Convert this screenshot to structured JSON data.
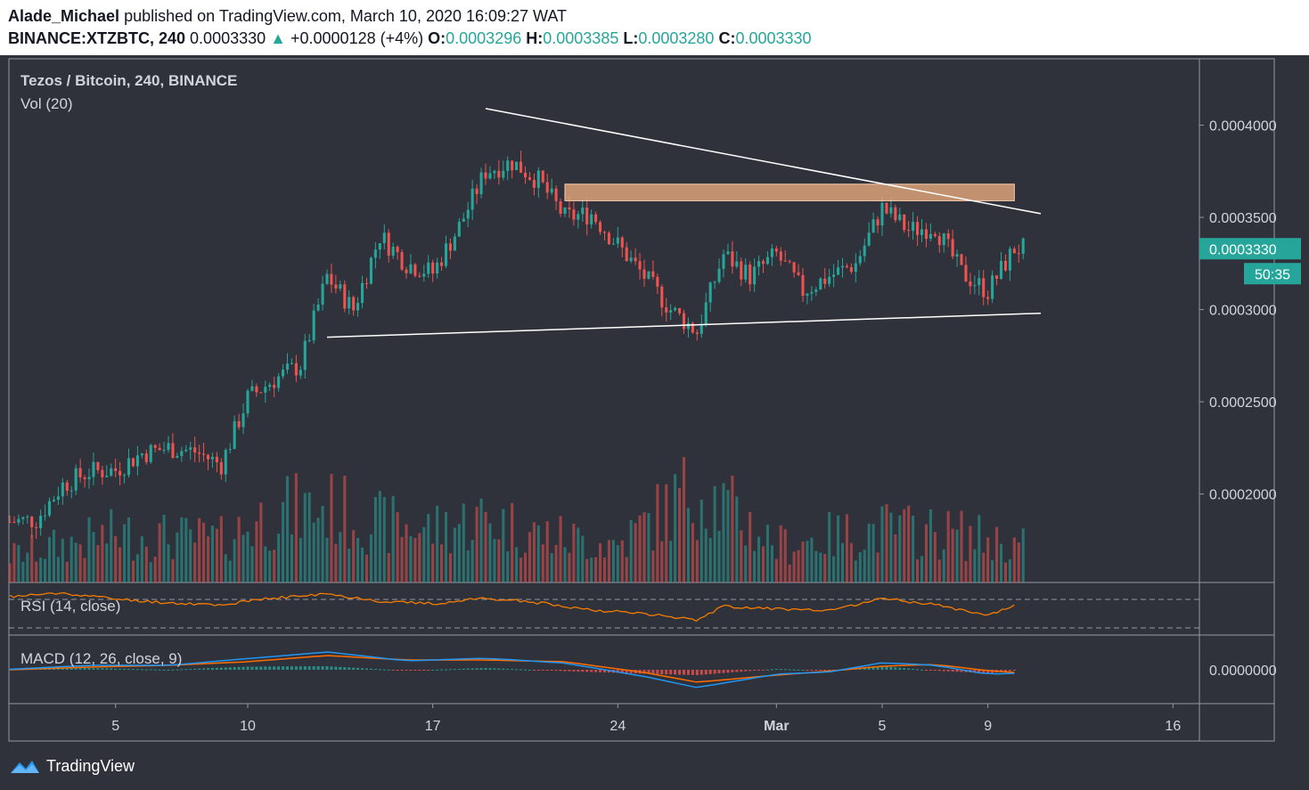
{
  "header": {
    "author": "Alade_Michael",
    "published_text": "published on TradingView.com, March 10, 2020 16:09:27 WAT",
    "symbol": "BINANCE:XTZBTC, 240",
    "last": "0.0003330",
    "change_arrow": "▲",
    "change": "+0.0000128 (+4%)",
    "open_label": "O:",
    "open": "0.0003296",
    "high_label": "H:",
    "high": "0.0003385",
    "low_label": "L:",
    "low": "0.0003280",
    "close_label": "C:",
    "close": "0.0003330"
  },
  "legend": {
    "title": "Tezos / Bitcoin, 240, BINANCE",
    "vol": "Vol (20)",
    "rsi": "RSI (14, close)",
    "macd": "MACD (12, 26, close, 9)"
  },
  "footer": {
    "brand": "TradingView"
  },
  "colors": {
    "bg": "#2f323b",
    "up": "#26a69a",
    "down": "#ef5350",
    "macd": "#2196f3",
    "signal": "#ff6d00",
    "rsi": "#f57c00",
    "zone": "#f4b183",
    "grid": "#9598a1"
  },
  "chart_data": [
    {
      "type": "candlestick",
      "title": "Tezos / Bitcoin, 240, BINANCE",
      "y_ticks": [
        "0.0004000",
        "0.0003500",
        "0.0003000",
        "0.0002500",
        "0.0002000"
      ],
      "y_tick_values": [
        0.0004,
        0.00035,
        0.0003,
        0.00025,
        0.0002
      ],
      "ylim": [
        0.000152,
        0.000436
      ],
      "x_ticks": [
        "5",
        "10",
        "17",
        "24",
        "Mar",
        "5",
        "9",
        "16"
      ],
      "x_tick_dates": [
        "2020-02-05",
        "2020-02-10",
        "2020-02-17",
        "2020-02-24",
        "2020-03-01",
        "2020-03-05",
        "2020-03-09",
        "2020-03-16"
      ],
      "xlim": [
        "2020-02-01",
        "2020-03-17"
      ],
      "last_price_label": "0.0003330",
      "countdown_label": "50:35",
      "close_path": [
        [
          "2020-02-01",
          0.000185
        ],
        [
          "2020-02-02",
          0.000186
        ],
        [
          "2020-02-03",
          0.000205
        ],
        [
          "2020-02-04",
          0.000212
        ],
        [
          "2020-02-05",
          0.000213
        ],
        [
          "2020-02-06",
          0.000222
        ],
        [
          "2020-02-07",
          0.000225
        ],
        [
          "2020-02-08",
          0.000223
        ],
        [
          "2020-02-09",
          0.000216
        ],
        [
          "2020-02-10",
          0.000252
        ],
        [
          "2020-02-11",
          0.000262
        ],
        [
          "2020-02-12",
          0.00027
        ],
        [
          "2020-02-13",
          0.000318
        ],
        [
          "2020-02-14",
          0.0003
        ],
        [
          "2020-02-15",
          0.00034
        ],
        [
          "2020-02-16",
          0.000325
        ],
        [
          "2020-02-17",
          0.00032
        ],
        [
          "2020-02-18",
          0.000345
        ],
        [
          "2020-02-19",
          0.000375
        ],
        [
          "2020-02-20",
          0.00038
        ],
        [
          "2020-02-21",
          0.00037
        ],
        [
          "2020-02-22",
          0.00035
        ],
        [
          "2020-02-23",
          0.000352
        ],
        [
          "2020-02-24",
          0.000335
        ],
        [
          "2020-02-25",
          0.000318
        ],
        [
          "2020-02-26",
          0.0003
        ],
        [
          "2020-02-27",
          0.000288
        ],
        [
          "2020-02-28",
          0.00033
        ],
        [
          "2020-02-29",
          0.000318
        ],
        [
          "2020-03-01",
          0.00033
        ],
        [
          "2020-03-02",
          0.00031
        ],
        [
          "2020-03-03",
          0.000318
        ],
        [
          "2020-03-04",
          0.000325
        ],
        [
          "2020-03-05",
          0.000355
        ],
        [
          "2020-03-06",
          0.000343
        ],
        [
          "2020-03-07",
          0.000345
        ],
        [
          "2020-03-08",
          0.00032
        ],
        [
          "2020-03-09",
          0.00031
        ],
        [
          "2020-03-10",
          0.000333
        ]
      ],
      "zone": {
        "from": "2020-02-22",
        "to": "2020-03-10",
        "low": 0.000359,
        "high": 0.000368
      },
      "trendlines": [
        {
          "name": "descending resistance",
          "points": [
            [
              "2020-02-19",
              0.000409
            ],
            [
              "2020-03-11",
              0.000352
            ]
          ]
        },
        {
          "name": "ascending support",
          "points": [
            [
              "2020-02-13",
              0.000285
            ],
            [
              "2020-03-11",
              0.000298
            ]
          ]
        }
      ]
    },
    {
      "type": "bar",
      "title": "Vol (20)",
      "relative_level_path": [
        [
          "2020-02-01",
          0.25
        ],
        [
          "2020-02-05",
          0.45
        ],
        [
          "2020-02-09",
          0.4
        ],
        [
          "2020-02-11",
          0.65
        ],
        [
          "2020-02-13",
          0.7
        ],
        [
          "2020-02-15",
          0.55
        ],
        [
          "2020-02-17",
          0.5
        ],
        [
          "2020-02-19",
          0.6
        ],
        [
          "2020-02-21",
          0.45
        ],
        [
          "2020-02-24",
          0.35
        ],
        [
          "2020-02-27",
          0.9
        ],
        [
          "2020-03-01",
          0.35
        ],
        [
          "2020-03-05",
          0.5
        ],
        [
          "2020-03-08",
          0.45
        ],
        [
          "2020-03-10",
          0.35
        ]
      ]
    },
    {
      "type": "line",
      "title": "RSI (14, close)",
      "path": [
        [
          "2020-02-01",
          75
        ],
        [
          "2020-02-03",
          82
        ],
        [
          "2020-02-05",
          70
        ],
        [
          "2020-02-07",
          62
        ],
        [
          "2020-02-09",
          58
        ],
        [
          "2020-02-11",
          72
        ],
        [
          "2020-02-13",
          80
        ],
        [
          "2020-02-15",
          66
        ],
        [
          "2020-02-17",
          60
        ],
        [
          "2020-02-19",
          72
        ],
        [
          "2020-02-21",
          62
        ],
        [
          "2020-02-23",
          48
        ],
        [
          "2020-02-25",
          40
        ],
        [
          "2020-02-27",
          28
        ],
        [
          "2020-02-28",
          55
        ],
        [
          "2020-03-01",
          50
        ],
        [
          "2020-03-03",
          45
        ],
        [
          "2020-03-05",
          72
        ],
        [
          "2020-03-07",
          58
        ],
        [
          "2020-03-09",
          38
        ],
        [
          "2020-03-10",
          55
        ]
      ]
    },
    {
      "type": "line",
      "title": "MACD (12, 26, close, 9)",
      "y_ticks": [
        "0.0000000"
      ],
      "series": [
        {
          "path": [
            [
              "2020-02-01",
              0.1
            ],
            [
              "2020-02-04",
              1.0
            ],
            [
              "2020-02-07",
              1.0
            ],
            [
              "2020-02-10",
              2.5
            ],
            [
              "2020-02-13",
              4.0
            ],
            [
              "2020-02-16",
              2.0
            ],
            [
              "2020-02-19",
              2.6
            ],
            [
              "2020-02-22",
              1.5
            ],
            [
              "2020-02-25",
              -1.5
            ],
            [
              "2020-02-27",
              -4.0
            ],
            [
              "2020-03-01",
              -1.0
            ],
            [
              "2020-03-03",
              -0.5
            ],
            [
              "2020-03-05",
              1.6
            ],
            [
              "2020-03-07",
              1.0
            ],
            [
              "2020-03-09",
              -1.0
            ],
            [
              "2020-03-10",
              -0.8
            ]
          ]
        },
        {
          "path": [
            [
              "2020-02-01",
              0.0
            ],
            [
              "2020-02-04",
              0.6
            ],
            [
              "2020-02-07",
              1.0
            ],
            [
              "2020-02-10",
              1.8
            ],
            [
              "2020-02-13",
              3.2
            ],
            [
              "2020-02-16",
              2.2
            ],
            [
              "2020-02-19",
              2.2
            ],
            [
              "2020-02-22",
              1.8
            ],
            [
              "2020-02-25",
              -0.6
            ],
            [
              "2020-02-27",
              -2.8
            ],
            [
              "2020-03-01",
              -1.2
            ],
            [
              "2020-03-03",
              -0.3
            ],
            [
              "2020-03-05",
              0.8
            ],
            [
              "2020-03-07",
              1.2
            ],
            [
              "2020-03-09",
              -0.2
            ],
            [
              "2020-03-10",
              -0.6
            ]
          ]
        }
      ]
    }
  ]
}
